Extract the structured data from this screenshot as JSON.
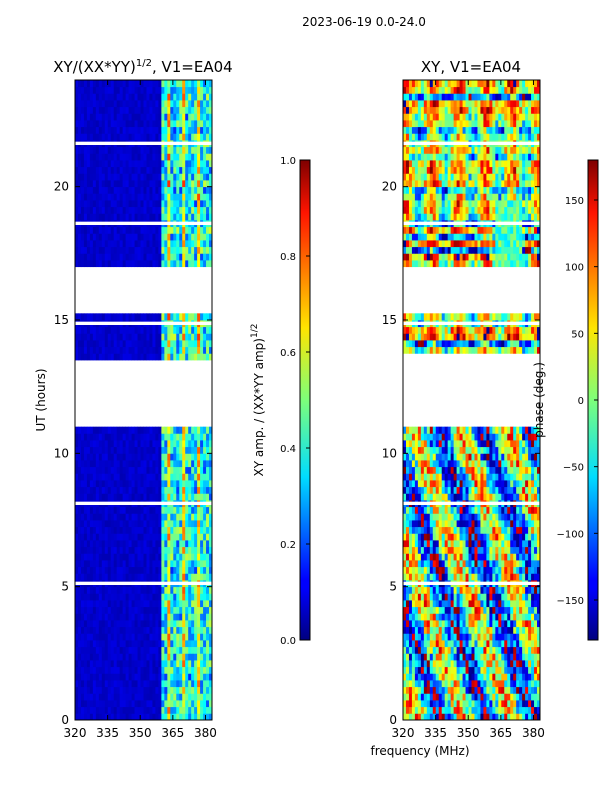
{
  "figure": {
    "suptitle": "2023-06-19 0.0-24.0",
    "xlabel": "frequency (MHz)"
  },
  "chart_data": [
    {
      "type": "heatmap",
      "title": "XY/(XX*YY)",
      "title_exponent": "1/2",
      "title_suffix": ", V1=EA04",
      "ylabel": "UT (hours)",
      "xlim": [
        320,
        383
      ],
      "ylim": [
        0,
        24
      ],
      "xticks": [
        320,
        335,
        350,
        365,
        380
      ],
      "yticks": [
        0,
        5,
        10,
        15,
        20
      ],
      "colormap": "jet",
      "colorbar": {
        "label": "XY amp. / (XX*YY amp)",
        "label_exponent": "1/2",
        "range": [
          0.0,
          1.0
        ],
        "ticks": [
          "0.0",
          "0.2",
          "0.4",
          "0.6",
          "0.8",
          "1.0"
        ]
      },
      "data_gaps_hours": [
        [
          11.1,
          13.6
        ],
        [
          15.2,
          17.1
        ]
      ],
      "bright_band_MHz": [
        360,
        383
      ]
    },
    {
      "type": "heatmap",
      "title": "XY, V1=EA04",
      "xlim": [
        320,
        383
      ],
      "ylim": [
        0,
        24
      ],
      "xticks": [
        320,
        335,
        350,
        365,
        380
      ],
      "yticks": [
        0,
        5,
        10,
        15,
        20
      ],
      "colormap": "jet",
      "colorbar": {
        "label": "phase (deg.)",
        "range": [
          -180,
          180
        ],
        "ticks": [
          "−150",
          "−100",
          "−50",
          "0",
          "50",
          "100",
          "150"
        ]
      },
      "data_gaps_hours": [
        [
          13.1,
          13.7
        ],
        [
          11.1,
          13.1
        ],
        [
          15.2,
          17.1
        ]
      ]
    }
  ]
}
